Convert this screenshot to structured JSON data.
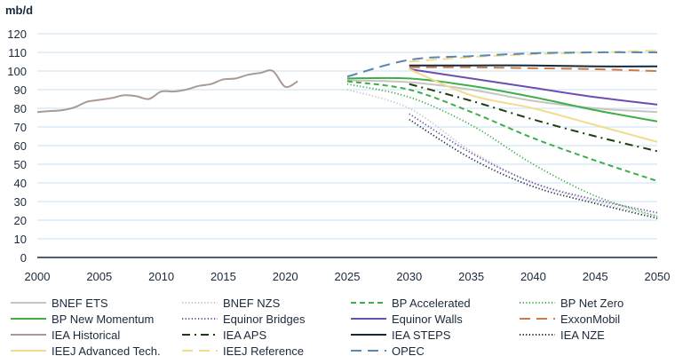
{
  "chart_data": {
    "type": "line",
    "ylabel": "mb/d",
    "xlim": [
      2000,
      2050
    ],
    "ylim": [
      0,
      120
    ],
    "xticks": [
      2000,
      2005,
      2010,
      2015,
      2020,
      2025,
      2030,
      2035,
      2040,
      2045,
      2050
    ],
    "yticks": [
      0,
      10,
      20,
      30,
      40,
      50,
      60,
      70,
      80,
      90,
      100,
      110,
      120
    ],
    "grid": true,
    "legend_position": "bottom",
    "series": [
      {
        "name": "BNEF ETS",
        "color": "#c8c4c2",
        "style": "solid",
        "x": [
          2025,
          2030,
          2035,
          2040,
          2045,
          2050
        ],
        "y": [
          95,
          94,
          90,
          84,
          80,
          78
        ]
      },
      {
        "name": "BNEF NZS",
        "color": "#c8c4c2",
        "style": "dotted",
        "x": [
          2025,
          2030,
          2035,
          2040,
          2045,
          2050
        ],
        "y": [
          90,
          80,
          57,
          40,
          30,
          22
        ]
      },
      {
        "name": "BP Accelerated",
        "color": "#3fae4a",
        "style": "dashed",
        "x": [
          2025,
          2030,
          2035,
          2040,
          2045,
          2050
        ],
        "y": [
          94.5,
          90,
          78,
          64,
          52,
          41
        ]
      },
      {
        "name": "BP Net Zero",
        "color": "#3fae4a",
        "style": "dotted",
        "x": [
          2025,
          2030,
          2035,
          2040,
          2045,
          2050
        ],
        "y": [
          93,
          86,
          71,
          50,
          33,
          22
        ]
      },
      {
        "name": "BP New Momentum",
        "color": "#3fae4a",
        "style": "solid",
        "x": [
          2025,
          2030,
          2035,
          2040,
          2045,
          2050
        ],
        "y": [
          96,
          96,
          92,
          86,
          79,
          73
        ]
      },
      {
        "name": "Equinor Bridges",
        "color": "#6a4fb0",
        "style": "dotted",
        "x": [
          2030,
          2035,
          2040,
          2045,
          2050
        ],
        "y": [
          77,
          56,
          40,
          31,
          24
        ]
      },
      {
        "name": "Equinor Walls",
        "color": "#6a4fb0",
        "style": "solid",
        "x": [
          2030,
          2035,
          2040,
          2045,
          2050
        ],
        "y": [
          101,
          96,
          91,
          86,
          82
        ]
      },
      {
        "name": "ExxonMobil",
        "color": "#c97c45",
        "style": "longdash",
        "x": [
          2030,
          2035,
          2040,
          2045,
          2050
        ],
        "y": [
          102,
          102,
          101.5,
          101,
          100
        ]
      },
      {
        "name": "IEA Historical",
        "color": "#a89a96",
        "style": "solid",
        "x": [
          2000,
          2001,
          2002,
          2003,
          2004,
          2005,
          2006,
          2007,
          2008,
          2009,
          2010,
          2011,
          2012,
          2013,
          2014,
          2015,
          2016,
          2017,
          2018,
          2019,
          2020,
          2021
        ],
        "y": [
          78,
          78.5,
          79,
          80.5,
          83.5,
          84.5,
          85.5,
          87,
          86.5,
          85,
          89,
          89,
          90,
          92,
          93,
          95.5,
          96,
          98,
          99,
          100,
          91.5,
          94.5
        ]
      },
      {
        "name": "IEA APS",
        "color": "#1f3d10",
        "style": "dashdot",
        "x": [
          2030,
          2035,
          2040,
          2045,
          2050
        ],
        "y": [
          93,
          84,
          74,
          65,
          57
        ]
      },
      {
        "name": "IEA STEPS",
        "color": "#16293a",
        "style": "solid",
        "x": [
          2030,
          2035,
          2040,
          2045,
          2050
        ],
        "y": [
          103,
          103,
          103,
          102.5,
          102.5
        ]
      },
      {
        "name": "IEA NZE",
        "color": "#16293a",
        "style": "dotted",
        "x": [
          2030,
          2035,
          2040,
          2045,
          2050
        ],
        "y": [
          74,
          53,
          38,
          29,
          21
        ]
      },
      {
        "name": "IEEJ Advanced Tech.",
        "color": "#f2dc8c",
        "style": "solid",
        "x": [
          2030,
          2035,
          2040,
          2045,
          2050
        ],
        "y": [
          101,
          87,
          80,
          71,
          62
        ]
      },
      {
        "name": "IEEJ Reference",
        "color": "#f2dc8c",
        "style": "longdash",
        "x": [
          2030,
          2035,
          2040,
          2045,
          2050
        ],
        "y": [
          105,
          107.5,
          109,
          110,
          111
        ]
      },
      {
        "name": "OPEC",
        "color": "#5b87b0",
        "style": "longdash",
        "x": [
          2025,
          2030,
          2035,
          2040,
          2045,
          2050
        ],
        "y": [
          97,
          106,
          108,
          109.5,
          110,
          110
        ]
      }
    ]
  }
}
